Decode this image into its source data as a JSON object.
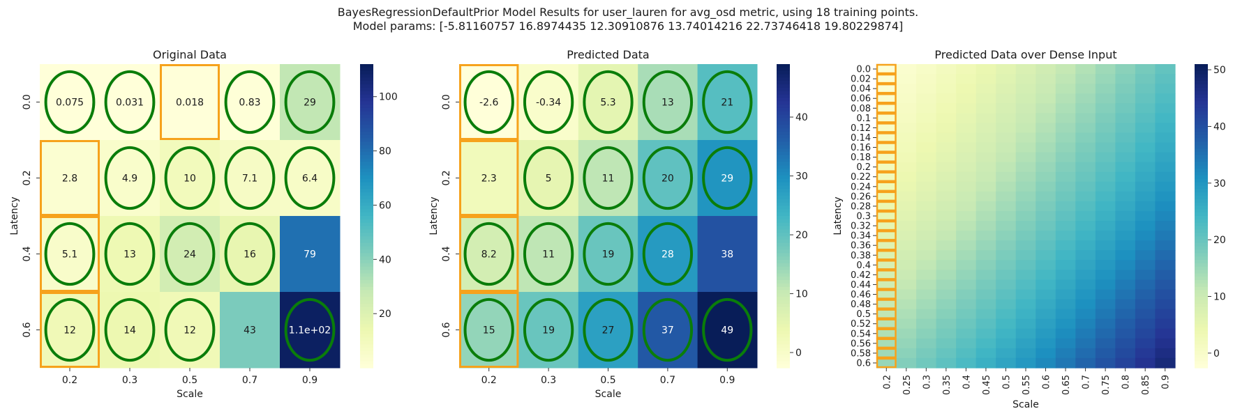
{
  "figure": {
    "title_line1": "BayesRegressionDefaultPrior Model Results for user_lauren for avg_osd metric, using 18 training points.",
    "title_line2": "Model params: [-5.81160757 16.8974435  12.30910876 13.74014216 22.73746418 19.80229874]"
  },
  "chart_data": [
    {
      "type": "heatmap",
      "title": "Original Data",
      "xlabel": "Scale",
      "ylabel": "Latency",
      "x_categories": [
        "0.2",
        "0.3",
        "0.5",
        "0.7",
        "0.9"
      ],
      "y_categories": [
        "0.0",
        "0.2",
        "0.4",
        "0.6"
      ],
      "values": [
        [
          0.075,
          0.031,
          0.018,
          0.83,
          29
        ],
        [
          2.8,
          4.9,
          10,
          7.1,
          6.4
        ],
        [
          5.1,
          13,
          24,
          16,
          79
        ],
        [
          12,
          14,
          12,
          43,
          110
        ]
      ],
      "cell_labels": [
        [
          "0.075",
          "0.031",
          "0.018",
          "0.83",
          "29"
        ],
        [
          "2.8",
          "4.9",
          "10",
          "7.1",
          "6.4"
        ],
        [
          "5.1",
          "13",
          "24",
          "16",
          "79"
        ],
        [
          "12",
          "14",
          "12",
          "43",
          "1.1e+02"
        ]
      ],
      "green_ellipses": [
        [
          true,
          true,
          false,
          true,
          true
        ],
        [
          false,
          true,
          true,
          true,
          true
        ],
        [
          true,
          true,
          true,
          true,
          false
        ],
        [
          true,
          true,
          true,
          false,
          true
        ]
      ],
      "orange_boxes": [
        [
          false,
          false,
          true,
          false,
          false
        ],
        [
          true,
          false,
          false,
          false,
          false
        ],
        [
          true,
          false,
          false,
          false,
          false
        ],
        [
          true,
          false,
          false,
          false,
          false
        ]
      ],
      "colorbar": {
        "vmin": 0.018,
        "vmax": 112,
        "ticks": [
          20,
          40,
          60,
          80,
          100
        ]
      },
      "colormap": "YlGnBu"
    },
    {
      "type": "heatmap",
      "title": "Predicted Data",
      "xlabel": "Scale",
      "ylabel": "Latency",
      "x_categories": [
        "0.2",
        "0.3",
        "0.5",
        "0.7",
        "0.9"
      ],
      "y_categories": [
        "0.0",
        "0.2",
        "0.4",
        "0.6"
      ],
      "values": [
        [
          -2.6,
          -0.34,
          5.3,
          13,
          21
        ],
        [
          2.3,
          5,
          11,
          20,
          29
        ],
        [
          8.2,
          11,
          19,
          28,
          38
        ],
        [
          15,
          19,
          27,
          37,
          49
        ]
      ],
      "cell_labels": [
        [
          "-2.6",
          "-0.34",
          "5.3",
          "13",
          "21"
        ],
        [
          "2.3",
          "5",
          "11",
          "20",
          "29"
        ],
        [
          "8.2",
          "11",
          "19",
          "28",
          "38"
        ],
        [
          "15",
          "19",
          "27",
          "37",
          "49"
        ]
      ],
      "green_ellipses": [
        [
          true,
          true,
          true,
          true,
          true
        ],
        [
          false,
          true,
          true,
          true,
          true
        ],
        [
          true,
          true,
          true,
          true,
          false
        ],
        [
          true,
          true,
          true,
          true,
          true
        ]
      ],
      "orange_boxes": [
        [
          true,
          false,
          false,
          false,
          false
        ],
        [
          true,
          false,
          false,
          false,
          false
        ],
        [
          true,
          false,
          false,
          false,
          false
        ],
        [
          true,
          false,
          false,
          false,
          false
        ]
      ],
      "colorbar": {
        "vmin": -2.6,
        "vmax": 49,
        "ticks": [
          0,
          10,
          20,
          30,
          40
        ]
      },
      "colormap": "YlGnBu"
    },
    {
      "type": "heatmap",
      "title": "Predicted Data over Dense Input",
      "xlabel": "Scale",
      "ylabel": "Latency",
      "x_categories": [
        "0.2",
        "0.25",
        "0.3",
        "0.35",
        "0.4",
        "0.45",
        "0.5",
        "0.55",
        "0.6",
        "0.65",
        "0.7",
        "0.75",
        "0.8",
        "0.85",
        "0.9"
      ],
      "y_categories": [
        "0.0",
        "0.02",
        "0.04",
        "0.06",
        "0.08",
        "0.1",
        "0.12",
        "0.14",
        "0.16",
        "0.18",
        "0.2",
        "0.22",
        "0.24",
        "0.26",
        "0.28",
        "0.3",
        "0.32",
        "0.34",
        "0.36",
        "0.38",
        "0.4",
        "0.42",
        "0.44",
        "0.46",
        "0.48",
        "0.5",
        "0.52",
        "0.54",
        "0.56",
        "0.58",
        "0.6"
      ],
      "model_params": [
        -5.81160757,
        16.8974435,
        12.30910876,
        13.74014216,
        22.73746418,
        19.80229874
      ],
      "orange_box_column": 0,
      "colorbar": {
        "vmin": -2.6,
        "vmax": 51,
        "ticks": [
          0,
          10,
          20,
          30,
          40,
          50
        ]
      },
      "colormap": "YlGnBu"
    }
  ]
}
